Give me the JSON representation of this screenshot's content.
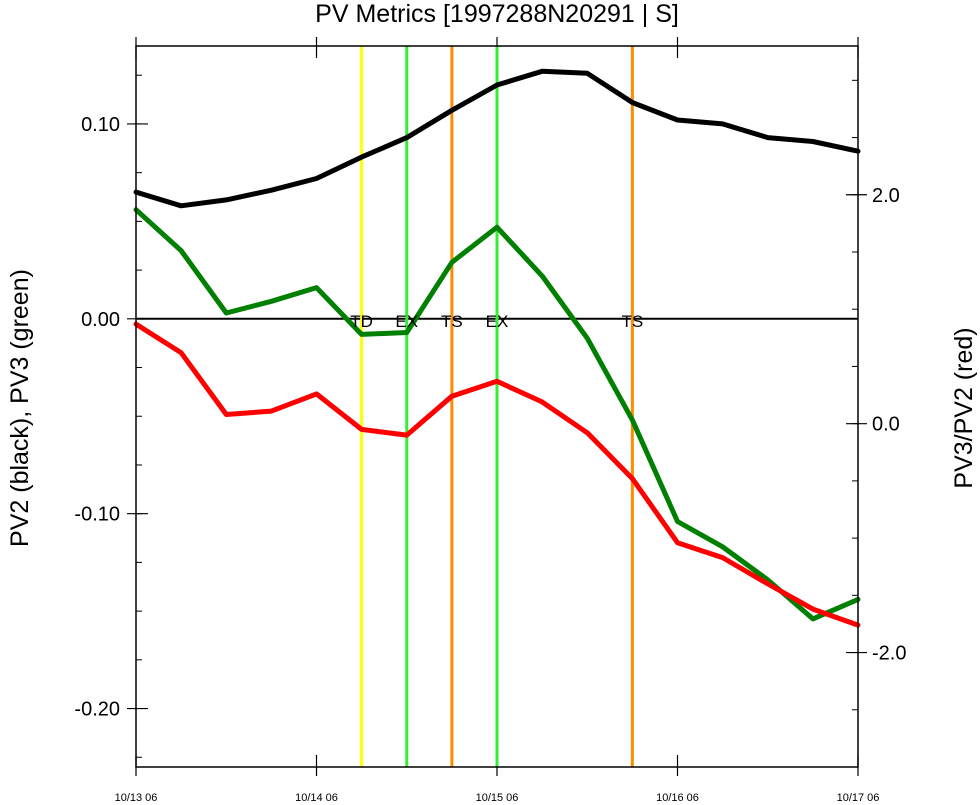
{
  "chart_data": {
    "type": "line",
    "title": "PV Metrics [1997288N20291 | S]",
    "ylabel_left": "PV2 (black), PV3 (green)",
    "ylabel_right": "PV3/PV2 (red)",
    "xlim": [
      0,
      96
    ],
    "ylim_left": [
      -0.23,
      0.14
    ],
    "ylim_right": [
      -3.0,
      3.3
    ],
    "left_ticks": [
      0.1,
      0.0,
      -0.1,
      -0.2
    ],
    "left_tick_labels": [
      "0.10",
      "0.00",
      "-0.10",
      "-0.20"
    ],
    "right_ticks": [
      2.0,
      0.0,
      -2.0
    ],
    "right_tick_labels": [
      "2.0",
      "0.0",
      "-2.0"
    ],
    "x_ticks": [
      0,
      24,
      48,
      72,
      96
    ],
    "x_tick_labels": [
      "10/13 06",
      "10/14 06",
      "10/15 06",
      "10/16 06",
      "10/17 06"
    ],
    "x": [
      0,
      6,
      12,
      18,
      24,
      30,
      36,
      42,
      48,
      54,
      60,
      66,
      72,
      78,
      84,
      90,
      96
    ],
    "series": [
      {
        "axis": "left",
        "color": "#000000",
        "values": [
          0.065,
          0.058,
          0.061,
          0.066,
          0.072,
          0.083,
          0.093,
          0.107,
          0.12,
          0.127,
          0.126,
          0.111,
          0.102,
          0.1,
          0.093,
          0.091,
          0.086
        ]
      },
      {
        "axis": "left",
        "color": "#008000",
        "values": [
          0.056,
          0.035,
          0.003,
          0.009,
          0.016,
          -0.008,
          -0.007,
          0.029,
          0.047,
          0.022,
          -0.01,
          -0.052,
          -0.104,
          -0.117,
          -0.134,
          -0.154,
          -0.144
        ]
      },
      {
        "axis": "right",
        "color": "#ff0000",
        "values": [
          0.87,
          0.62,
          0.08,
          0.11,
          0.26,
          -0.05,
          -0.1,
          0.24,
          0.37,
          0.19,
          -0.08,
          -0.48,
          -1.04,
          -1.17,
          -1.4,
          -1.62,
          -1.76
        ]
      }
    ],
    "zero_line": 0.0,
    "events": [
      {
        "x": 30,
        "label": "TD",
        "color": "#ffff00"
      },
      {
        "x": 36,
        "label": "EX",
        "color": "#33ee33"
      },
      {
        "x": 42,
        "label": "TS",
        "color": "#ff8c00"
      },
      {
        "x": 48,
        "label": "EX",
        "color": "#33ee33"
      },
      {
        "x": 66,
        "label": "TS",
        "color": "#ff8c00"
      }
    ]
  }
}
